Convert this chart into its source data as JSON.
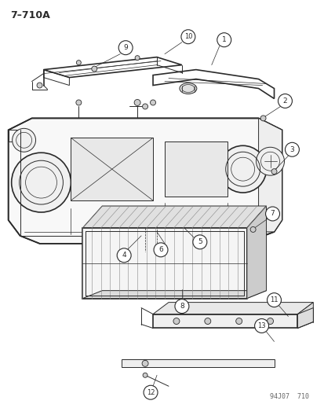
{
  "title": "7–710A",
  "bg": "#ffffff",
  "lc": "#2a2a2a",
  "figsize": [
    4.14,
    5.33
  ],
  "dpi": 100,
  "watermark": "94J07  710"
}
